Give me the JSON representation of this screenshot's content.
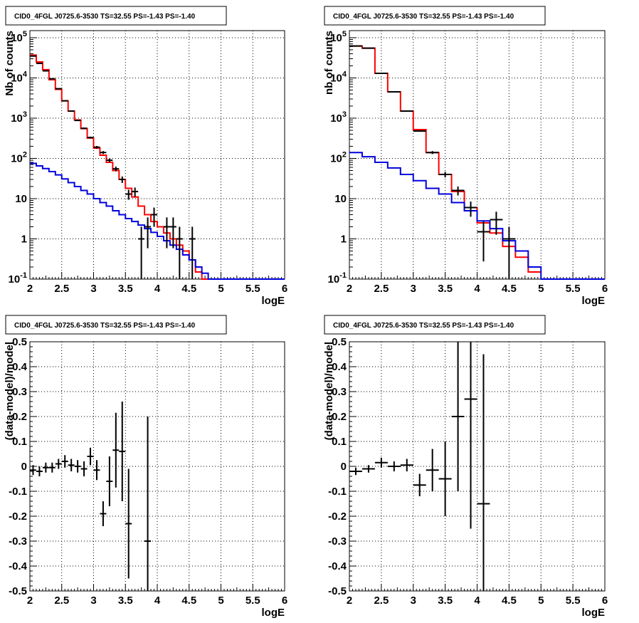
{
  "chart_data": [
    {
      "type": "line",
      "title": "CID0_4FGL J0725.6-3530 TS=32.55 PS=-1.43 PS=-1.40",
      "xlabel": "logE",
      "ylabel": "Nb of counts",
      "log_y": true,
      "grid": true,
      "xlim": [
        2,
        6
      ],
      "ylim": [
        0.1,
        150000
      ],
      "x_ticks": [
        "2",
        "2.5",
        "3",
        "3.5",
        "4",
        "4.5",
        "5",
        "5.5",
        "6"
      ],
      "y_ticks": [
        "10^-1",
        "1",
        "10",
        "10^2",
        "10^3",
        "10^4",
        "10^5"
      ],
      "bin_width": 0.1,
      "series": [
        {
          "style": "step",
          "color": "#ff0000",
          "x": [
            2.0,
            2.1,
            2.2,
            2.3,
            2.4,
            2.5,
            2.6,
            2.7,
            2.8,
            2.9,
            3.0,
            3.1,
            3.2,
            3.3,
            3.4,
            3.5,
            3.6,
            3.7,
            3.8,
            3.9,
            4.0,
            4.1,
            4.2,
            4.3,
            4.4,
            4.5,
            4.6,
            4.7
          ],
          "values": [
            37000,
            25000,
            16000,
            9000,
            5200,
            2700,
            1500,
            900,
            550,
            320,
            180,
            120,
            80,
            50,
            30,
            18,
            11,
            6.5,
            4,
            2.7,
            2,
            1.4,
            1,
            0.7,
            0.5,
            0.3,
            0.15,
            0.1
          ]
        },
        {
          "style": "step",
          "color": "#0000dd",
          "x": [
            2.0,
            2.1,
            2.2,
            2.3,
            2.4,
            2.5,
            2.6,
            2.7,
            2.8,
            2.9,
            3.0,
            3.1,
            3.2,
            3.3,
            3.4,
            3.5,
            3.6,
            3.7,
            3.8,
            3.9,
            4.0,
            4.1,
            4.2,
            4.3,
            4.4,
            4.5,
            4.6,
            4.7,
            4.8,
            4.9,
            5.0,
            5.1,
            5.2,
            5.3,
            5.4,
            5.5,
            5.6,
            5.7,
            5.8,
            5.9
          ],
          "values": [
            75,
            65,
            56,
            47,
            39,
            31,
            25,
            20,
            16,
            13,
            10,
            8,
            6.5,
            5,
            4,
            3.2,
            2.7,
            2.2,
            1.8,
            1.45,
            1.15,
            0.9,
            0.7,
            0.55,
            0.4,
            0.3,
            0.2,
            0.14,
            0.1,
            0.1,
            0.1,
            0.1,
            0.1,
            0.1,
            0.1,
            0.1,
            0.1,
            0.1,
            0.1,
            0.1
          ]
        },
        {
          "style": "points",
          "color": "#000000",
          "x": [
            2.05,
            2.15,
            2.25,
            2.35,
            2.45,
            2.55,
            2.65,
            2.75,
            2.85,
            2.95,
            3.05,
            3.15,
            3.25,
            3.35,
            3.45,
            3.55,
            3.65,
            3.75,
            3.85,
            3.95,
            4.15,
            4.25,
            4.35,
            4.55
          ],
          "values": [
            35000,
            23000,
            15000,
            9500,
            5400,
            2700,
            1500,
            880,
            560,
            330,
            190,
            140,
            90,
            55,
            30,
            13,
            15,
            1,
            2,
            4,
            2,
            2,
            1,
            1
          ]
        }
      ]
    },
    {
      "type": "line",
      "title": "CID0_4FGL J0725.6-3530 TS=32.55 PS=-1.43 PS=-1.40",
      "xlabel": "logE",
      "ylabel": "nb of counts",
      "log_y": true,
      "grid": true,
      "xlim": [
        2,
        6
      ],
      "ylim": [
        0.1,
        150000
      ],
      "x_ticks": [
        "2",
        "2.5",
        "3",
        "3.5",
        "4",
        "4.5",
        "5",
        "5.5",
        "6"
      ],
      "y_ticks": [
        "10^-1",
        "1",
        "10",
        "10^2",
        "10^3",
        "10^4",
        "10^5"
      ],
      "bin_width": 0.2,
      "series": [
        {
          "style": "step",
          "color": "#ff0000",
          "x": [
            2.0,
            2.2,
            2.4,
            2.6,
            2.8,
            3.0,
            3.2,
            3.4,
            3.6,
            3.8,
            4.0,
            4.2,
            4.4,
            4.6,
            4.8
          ],
          "values": [
            62000,
            55000,
            13000,
            4500,
            1500,
            520,
            140,
            40,
            15,
            6,
            2.5,
            1.4,
            0.65,
            0.35,
            0.15
          ]
        },
        {
          "style": "step",
          "color": "#0000dd",
          "x": [
            2.0,
            2.2,
            2.4,
            2.6,
            2.8,
            3.0,
            3.2,
            3.4,
            3.6,
            3.8,
            4.0,
            4.2,
            4.4,
            4.6,
            4.8,
            5.0,
            5.2,
            5.4,
            5.6,
            5.8
          ],
          "values": [
            140,
            110,
            80,
            58,
            40,
            28,
            18,
            13,
            8,
            5,
            2.8,
            1.8,
            0.9,
            0.5,
            0.2,
            0.1,
            0.1,
            0.1,
            0.1,
            0.1
          ]
        },
        {
          "style": "points",
          "color": "#000000",
          "x": [
            2.1,
            2.3,
            2.5,
            2.7,
            2.9,
            3.1,
            3.3,
            3.5,
            3.7,
            3.9,
            4.1,
            4.3,
            4.5
          ],
          "values": [
            62000,
            55000,
            13000,
            4500,
            1500,
            480,
            140,
            40,
            16,
            6,
            1.5,
            3,
            1
          ]
        }
      ]
    },
    {
      "type": "scatter",
      "title": "CID0_4FGL J0725.6-3530 TS=32.55 PS=-1.43 PS=-1.40",
      "xlabel": "logE",
      "ylabel": "(data-model)/model",
      "grid": true,
      "xlim": [
        2,
        6
      ],
      "ylim": [
        -0.5,
        0.5
      ],
      "x_ticks": [
        "2",
        "2.5",
        "3",
        "3.5",
        "4",
        "4.5",
        "5",
        "5.5",
        "6"
      ],
      "y_ticks": [
        "-0.5",
        "-0.4",
        "-0.3",
        "-0.2",
        "-0.1",
        "0",
        "0.1",
        "0.2",
        "0.3",
        "0.4",
        "0.5"
      ],
      "series": [
        {
          "color": "#000000",
          "x": [
            2.05,
            2.15,
            2.25,
            2.35,
            2.45,
            2.55,
            2.65,
            2.75,
            2.85,
            2.95,
            3.05,
            3.15,
            3.25,
            3.35,
            3.45,
            3.55,
            3.85
          ],
          "values": [
            -0.015,
            -0.02,
            -0.005,
            -0.005,
            0.01,
            0.02,
            0.005,
            0,
            -0.01,
            0.04,
            -0.015,
            -0.19,
            -0.06,
            0.065,
            0.06,
            -0.23,
            -0.3
          ],
          "err": [
            0.02,
            0.02,
            0.02,
            0.02,
            0.02,
            0.025,
            0.025,
            0.025,
            0.03,
            0.035,
            0.04,
            0.05,
            0.1,
            0.15,
            0.2,
            0.22,
            0.5
          ]
        }
      ]
    },
    {
      "type": "scatter",
      "title": "CID0_4FGL J0725.6-3530 TS=32.55 PS=-1.43 PS=-1.40",
      "xlabel": "logE",
      "ylabel": "(data-model)/model",
      "grid": true,
      "xlim": [
        2,
        6
      ],
      "ylim": [
        -0.5,
        0.5
      ],
      "x_ticks": [
        "2",
        "2.5",
        "3",
        "3.5",
        "4",
        "4.5",
        "5",
        "5.5",
        "6"
      ],
      "y_ticks": [
        "-0.5",
        "-0.4",
        "-0.3",
        "-0.2",
        "-0.1",
        "0",
        "0.1",
        "0.2",
        "0.3",
        "0.4",
        "0.5"
      ],
      "series": [
        {
          "color": "#000000",
          "x": [
            2.1,
            2.3,
            2.5,
            2.7,
            2.9,
            3.1,
            3.3,
            3.5,
            3.7,
            3.9,
            4.1
          ],
          "values": [
            -0.02,
            -0.01,
            0.015,
            0,
            0.005,
            -0.075,
            -0.015,
            -0.05,
            0.2,
            0.27,
            -0.15
          ],
          "err": [
            0.015,
            0.015,
            0.02,
            0.02,
            0.025,
            0.045,
            0.085,
            0.15,
            0.3,
            0.52,
            0.6
          ]
        }
      ]
    }
  ]
}
